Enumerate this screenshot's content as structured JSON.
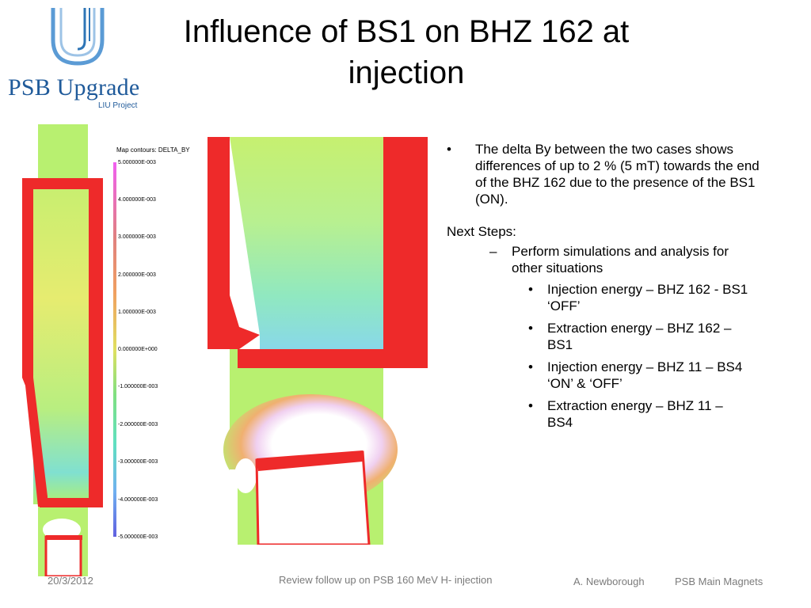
{
  "logo": {
    "name": "PSB Upgrade",
    "subtitle": "LIU Project",
    "brand_color": "#1f5a9a",
    "accent_color": "#5b9bd5"
  },
  "title": "Influence of BS1 on BHZ 162 at injection",
  "legend": {
    "title": "Map contours: DELTA_BY",
    "values": [
      "5.000000E-003",
      "4.000000E-003",
      "3.000000E-003",
      "2.000000E-003",
      "1.000000E-003",
      "0.000000E+000",
      "-1.000000E-003",
      "-2.000000E-003",
      "-3.000000E-003",
      "-4.000000E-003",
      "-5.000000E-003"
    ]
  },
  "bullets": {
    "main": "The delta By between the two cases shows differences of up to 2 % (5 mT) towards the end of the BHZ 162 due to the presence of the BS1 (ON).",
    "next_steps": "Next Steps:",
    "sub": "Perform simulations and analysis for other situations",
    "items": [
      "Injection energy – BHZ 162 - BS1 ‘OFF’",
      "Extraction energy – BHZ 162 – BS1",
      "Injection energy – BHZ 11 – BS4 ‘ON’ & ‘OFF’",
      "Extraction energy – BHZ 11 – BS4"
    ]
  },
  "footer": {
    "date": "20/3/2012",
    "center": "Review follow up on PSB 160 MeV H- injection",
    "author": "A. Newborough",
    "group": "PSB Main Magnets"
  },
  "colors": {
    "magnet_red": "#ee2a2a",
    "field_green": "#b8f060",
    "footer_gray": "#7b7b7b"
  }
}
